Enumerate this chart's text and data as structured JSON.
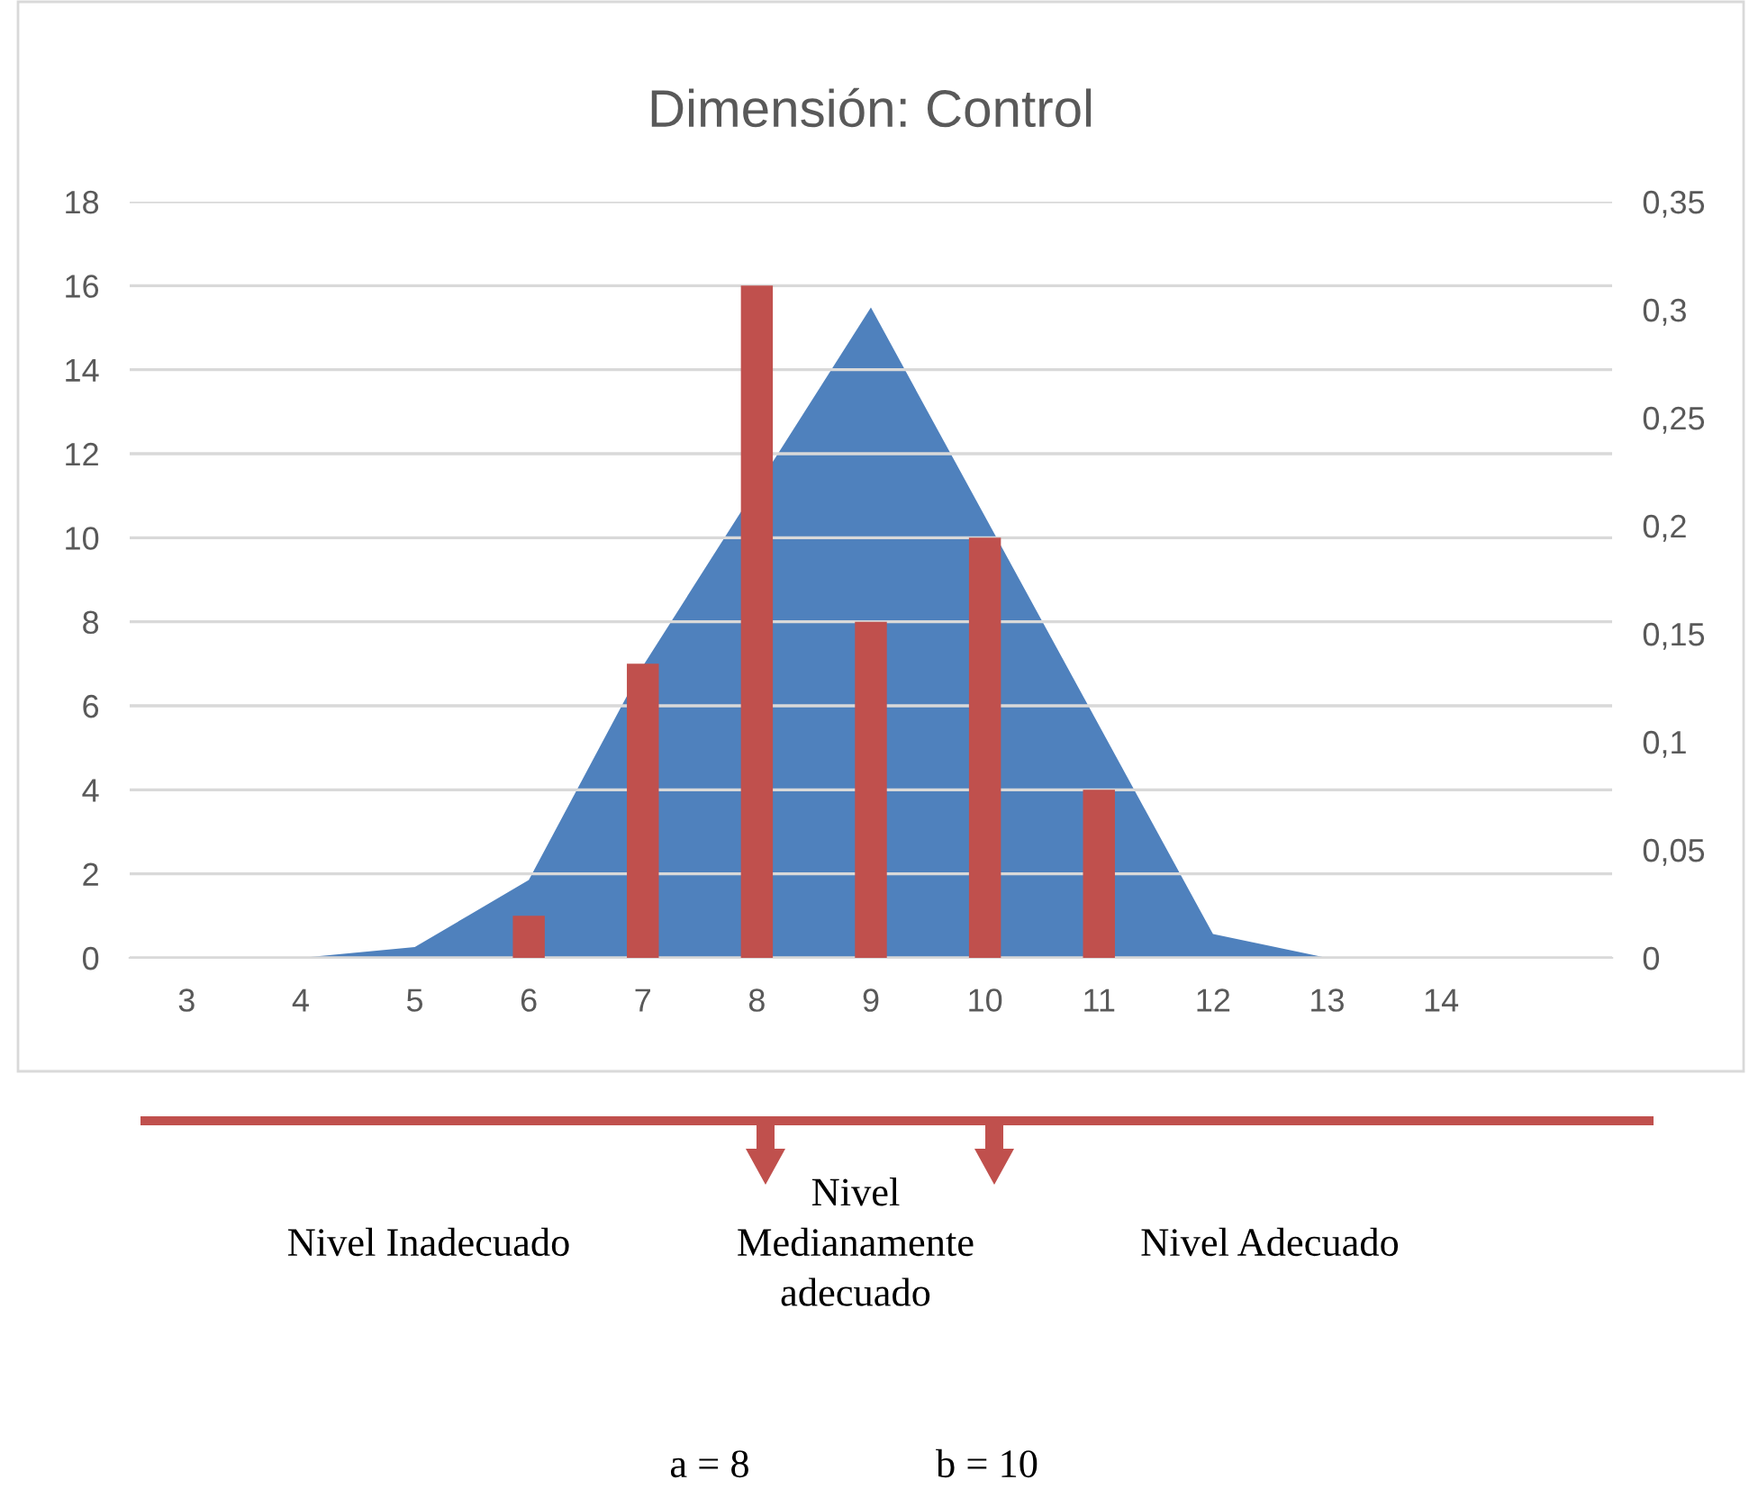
{
  "chart_data": {
    "type": "bar",
    "title": "Dimensión: Control",
    "categories": [
      "3",
      "4",
      "5",
      "6",
      "7",
      "8",
      "9",
      "10",
      "11",
      "12",
      "13",
      "14",
      null
    ],
    "series": [
      {
        "type": "area",
        "axis": "y2",
        "color": "#4f81bd",
        "values": [
          0,
          0,
          0.005,
          0.036,
          0.135,
          null,
          0.301,
          null,
          null,
          0.011,
          0,
          0,
          0
        ]
      },
      {
        "color": "#c0504d",
        "values": [
          null,
          null,
          null,
          1,
          7,
          16,
          8,
          10,
          4,
          null,
          null,
          null,
          null
        ]
      }
    ],
    "ylim": [
      0,
      18
    ],
    "yticks": [
      0,
      2,
      4,
      6,
      8,
      10,
      12,
      14,
      16,
      18
    ],
    "y2lim": [
      0,
      0.35
    ],
    "y2ticks": [
      {
        "value": 0,
        "label": "0"
      },
      {
        "value": 0.05,
        "label": "0,05"
      },
      {
        "value": 0.1,
        "label": "0,1"
      },
      {
        "value": 0.15,
        "label": "0,15"
      },
      {
        "value": 0.2,
        "label": "0,2"
      },
      {
        "value": 0.25,
        "label": "0,25"
      },
      {
        "value": 0.3,
        "label": "0,3"
      },
      {
        "value": 0.35,
        "label": "0,35"
      }
    ],
    "grid": "y",
    "legend": false,
    "annotations": [
      "Nivel Inadecuado",
      "Nivel\nMedianamente\nadecuado",
      "Nivel Adecuado",
      "a = 8",
      "b = 10"
    ]
  }
}
